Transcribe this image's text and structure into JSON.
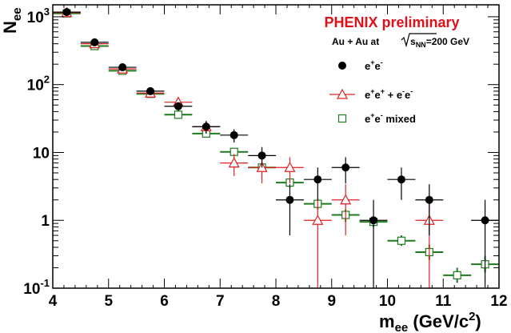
{
  "chart_data": {
    "type": "scatter",
    "title": "PHENIX preliminary",
    "subtitle": {
      "prefix": "Au + Au  at",
      "sqrt_s": "s",
      "sub": "NN",
      "suffix": "=200 GeV"
    },
    "ylabel": {
      "main": "N",
      "sub": "ee"
    },
    "xlabel": {
      "main": "m",
      "sub": "ee",
      "unit": " (GeV/c",
      "sup": "2",
      "close": ")"
    },
    "xlim": [
      4,
      12
    ],
    "ylim": [
      0.1,
      1500
    ],
    "yscale": "log",
    "x_ticks": [
      "4",
      "5",
      "6",
      "7",
      "8",
      "9",
      "10",
      "11",
      "12"
    ],
    "y_ticks": [
      {
        "value": 1000,
        "base": "10",
        "exp": "3"
      },
      {
        "value": 100,
        "base": "10",
        "exp": "2"
      },
      {
        "value": 10,
        "base": "10",
        "exp": ""
      },
      {
        "value": 1,
        "base": "1",
        "exp": ""
      },
      {
        "value": 0.1,
        "base": "10",
        "exp": "-1"
      }
    ],
    "series": [
      {
        "name": "e+e-",
        "legend": {
          "base": "e",
          "s1": "+",
          "b2": "e",
          "s2": "-",
          "rest": ""
        },
        "marker": "filled-circle",
        "color": "#000000",
        "points": [
          {
            "x": 4.25,
            "y": 1170,
            "ylo": 1130,
            "yhi": 1210
          },
          {
            "x": 4.75,
            "y": 420,
            "ylo": 400,
            "yhi": 440
          },
          {
            "x": 5.25,
            "y": 180,
            "ylo": 167,
            "yhi": 193
          },
          {
            "x": 5.75,
            "y": 80,
            "ylo": 71,
            "yhi": 89
          },
          {
            "x": 6.25,
            "y": 48,
            "ylo": 41,
            "yhi": 55
          },
          {
            "x": 6.75,
            "y": 24,
            "ylo": 19,
            "yhi": 29
          },
          {
            "x": 7.25,
            "y": 18,
            "ylo": 14,
            "yhi": 22
          },
          {
            "x": 7.75,
            "y": 9,
            "ylo": 6,
            "yhi": 12
          },
          {
            "x": 8.25,
            "y": 2,
            "ylo": 0.6,
            "yhi": 3.4
          },
          {
            "x": 8.75,
            "y": 4,
            "ylo": 2,
            "yhi": 6
          },
          {
            "x": 9.25,
            "y": 6,
            "ylo": 3.5,
            "yhi": 8.5
          },
          {
            "x": 9.75,
            "y": 1,
            "ylo": 0.1,
            "yhi": 2
          },
          {
            "x": 10.25,
            "y": 4,
            "ylo": 2,
            "yhi": 6
          },
          {
            "x": 10.75,
            "y": 2,
            "ylo": 0.6,
            "yhi": 3.4
          },
          {
            "x": 11.75,
            "y": 1,
            "ylo": 0.1,
            "yhi": 2
          }
        ]
      },
      {
        "name": "e+e+ + e-e-",
        "legend": {
          "base": "e",
          "s1": "+",
          "b2": "e",
          "s2": "+",
          "rest": " + e",
          "s3": "-",
          "b4": "e",
          "s4": "-"
        },
        "marker": "open-triangle",
        "color": "#e02020",
        "points": [
          {
            "x": 4.25,
            "y": 1150,
            "ylo": 1115,
            "yhi": 1185
          },
          {
            "x": 4.75,
            "y": 400,
            "ylo": 380,
            "yhi": 420
          },
          {
            "x": 5.25,
            "y": 170,
            "ylo": 158,
            "yhi": 182
          },
          {
            "x": 5.75,
            "y": 75,
            "ylo": 67,
            "yhi": 83
          },
          {
            "x": 6.25,
            "y": 55,
            "ylo": 48,
            "yhi": 62
          },
          {
            "x": 6.75,
            "y": 24,
            "ylo": 19,
            "yhi": 29
          },
          {
            "x": 7.25,
            "y": 7,
            "ylo": 4.5,
            "yhi": 9.5
          },
          {
            "x": 7.75,
            "y": 6,
            "ylo": 3.5,
            "yhi": 8.5
          },
          {
            "x": 8.25,
            "y": 6,
            "ylo": 3.5,
            "yhi": 8.5
          },
          {
            "x": 8.75,
            "y": 1,
            "ylo": 0.1,
            "yhi": 2
          },
          {
            "x": 9.25,
            "y": 2,
            "ylo": 0.6,
            "yhi": 3.4
          },
          {
            "x": 10.75,
            "y": 1,
            "ylo": 0.1,
            "yhi": 2
          }
        ]
      },
      {
        "name": "e+e- mixed",
        "legend": {
          "base": "e",
          "s1": "+",
          "b2": "e",
          "s2": "-",
          "rest": " mixed"
        },
        "marker": "open-square",
        "color": "#1e7a1e",
        "points": [
          {
            "x": 4.25,
            "y": 1120
          },
          {
            "x": 4.75,
            "y": 370
          },
          {
            "x": 5.25,
            "y": 160
          },
          {
            "x": 5.75,
            "y": 73
          },
          {
            "x": 6.25,
            "y": 36
          },
          {
            "x": 6.75,
            "y": 19
          },
          {
            "x": 7.25,
            "y": 10.2
          },
          {
            "x": 7.75,
            "y": 6
          },
          {
            "x": 8.25,
            "y": 3.6,
            "ylo": 3.1,
            "yhi": 4.1
          },
          {
            "x": 8.75,
            "y": 1.75,
            "ylo": 1.45,
            "yhi": 2.05
          },
          {
            "x": 9.25,
            "y": 1.2,
            "ylo": 0.95,
            "yhi": 1.45
          },
          {
            "x": 9.75,
            "y": 0.95,
            "ylo": 0.8,
            "yhi": 1.1
          },
          {
            "x": 10.25,
            "y": 0.5,
            "ylo": 0.42,
            "yhi": 0.6
          },
          {
            "x": 10.75,
            "y": 0.34,
            "ylo": 0.26,
            "yhi": 0.44
          },
          {
            "x": 11.25,
            "y": 0.155,
            "ylo": 0.12,
            "yhi": 0.2
          },
          {
            "x": 11.75,
            "y": 0.225,
            "ylo": 0.17,
            "yhi": 0.3
          }
        ]
      }
    ],
    "legend_position": "top-right",
    "grid": false
  }
}
